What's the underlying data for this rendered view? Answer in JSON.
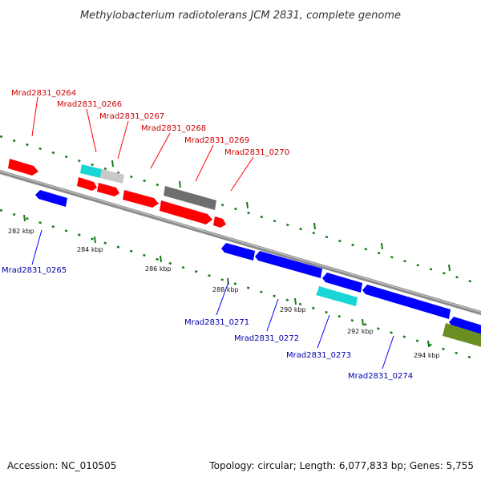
{
  "title": "Methylobacterium radiotolerans JCM 2831, complete genome",
  "footer": {
    "accession": "Accession: NC_010505",
    "summary": "Topology: circular; Length: 6,077,833 bp; Genes: 5,755"
  },
  "colors": {
    "backbone": "#8c8c8c",
    "forward_gene": "#ff0000",
    "reverse_gene": "#0000ff",
    "cyan_gene": "#19d6d6",
    "gray_gene": "#6e6e6e",
    "light_gray_gene": "#c8c8c8",
    "olive_gene": "#6b8e23",
    "tick": "#1a7a1a",
    "label_forward": "#cc0000",
    "label_reverse": "#0000aa"
  },
  "scale_labels": [
    "282 kbp",
    "284 kbp",
    "286 kbp",
    "288 kbp",
    "290 kbp",
    "292 kbp",
    "294 kbp"
  ],
  "forward_labels": [
    "Mrad2831_0264",
    "Mrad2831_0266",
    "Mrad2831_0267",
    "Mrad2831_0268",
    "Mrad2831_0269",
    "Mrad2831_0270"
  ],
  "reverse_labels": [
    "Mrad2831_0265",
    "Mrad2831_0271",
    "Mrad2831_0272",
    "Mrad2831_0273",
    "Mrad2831_0274"
  ]
}
